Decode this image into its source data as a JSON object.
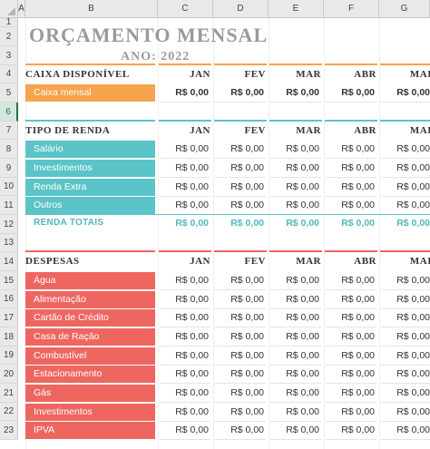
{
  "columns": [
    "A",
    "B",
    "C",
    "D",
    "E",
    "F",
    "G"
  ],
  "rows": [
    "1",
    "2",
    "3",
    "4",
    "5",
    "6",
    "7",
    "8",
    "9",
    "10",
    "11",
    "12",
    "13",
    "14",
    "15",
    "16",
    "17",
    "18",
    "19",
    "20",
    "21",
    "22",
    "23"
  ],
  "selected_row": "6",
  "title": "ORÇAMENTO MENSAL",
  "year_label": "ANO: 2022",
  "months": [
    "JAN",
    "FEV",
    "MAR",
    "ABR",
    "MAI"
  ],
  "default_value": "R$ 0,00",
  "colors": {
    "orange": "#f5a34c",
    "teal": "#5bc4c8",
    "red": "#ee6660",
    "title_gray": "#9a9a9a"
  },
  "sections": {
    "caixa": {
      "header": "CAIXA DISPONÍVEL",
      "items": [
        "Caixa mensal"
      ]
    },
    "renda": {
      "header": "TIPO DE RENDA",
      "items": [
        "Salário",
        "Investimentos",
        "Renda Extra",
        "Outros"
      ],
      "total_label": "RENDA TOTAIS"
    },
    "despesas": {
      "header": "DESPESAS",
      "items": [
        "Água",
        "Alimentação",
        "Cartão de Crédito",
        "Casa de Ração",
        "Combustível",
        "Estacionamento",
        "Gás",
        "Investimentos",
        "IPVA"
      ]
    }
  }
}
